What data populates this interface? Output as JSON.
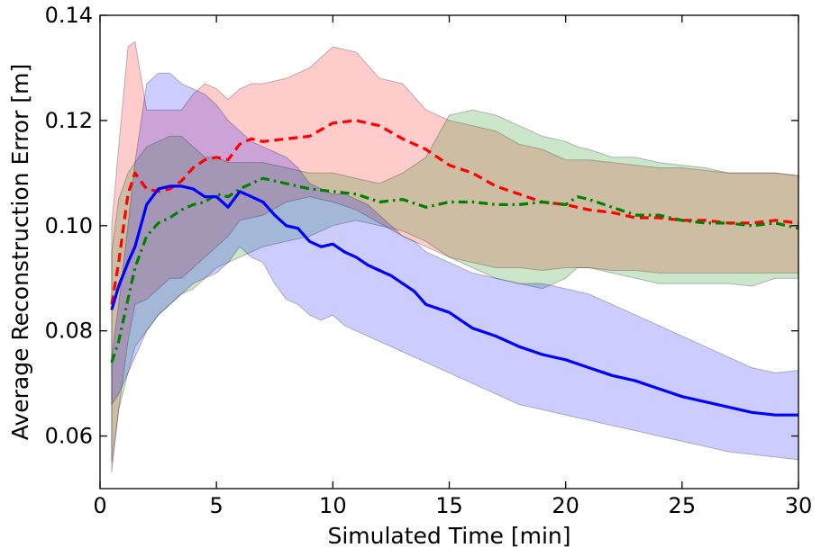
{
  "chart_data": {
    "type": "line",
    "title": "",
    "xlabel": "Simulated Time [min]",
    "ylabel": "Average Reconstruction Error [m]",
    "xlim": [
      0,
      30
    ],
    "ylim": [
      0.05,
      0.14
    ],
    "xticks": [
      0,
      5,
      10,
      15,
      20,
      25,
      30
    ],
    "xtick_labels": [
      "0",
      "5",
      "10",
      "15",
      "20",
      "25",
      "30"
    ],
    "yticks": [
      0.06,
      0.08,
      0.1,
      0.12,
      0.14
    ],
    "ytick_labels": [
      "0.06",
      "0.08",
      "0.10",
      "0.12",
      "0.14"
    ],
    "grid": false,
    "legend": "none",
    "series": [
      {
        "color": "#ff0000",
        "style": "dashed",
        "x": [
          0.5,
          0.8,
          1.2,
          1.5,
          2.0,
          2.5,
          3.0,
          3.5,
          4.0,
          4.5,
          5.0,
          5.5,
          6.0,
          6.5,
          7.0,
          8.0,
          9.0,
          10.0,
          11.0,
          12.0,
          13.0,
          14.0,
          15.0,
          16.0,
          17.0,
          18.0,
          19.0,
          20.0,
          21.0,
          22.0,
          23.0,
          24.0,
          25.0,
          26.0,
          27.0,
          28.0,
          29.0,
          30.0
        ],
        "values": [
          0.085,
          0.093,
          0.106,
          0.11,
          0.107,
          0.1065,
          0.107,
          0.1085,
          0.111,
          0.1125,
          0.113,
          0.1125,
          0.1155,
          0.1165,
          0.116,
          0.1165,
          0.117,
          0.1195,
          0.12,
          0.119,
          0.1165,
          0.1145,
          0.1115,
          0.11,
          0.1075,
          0.106,
          0.1045,
          0.104,
          0.103,
          0.1025,
          0.1015,
          0.1015,
          0.101,
          0.101,
          0.1005,
          0.1005,
          0.101,
          0.1005
        ],
        "band_upper": [
          0.1,
          0.115,
          0.134,
          0.135,
          0.122,
          0.122,
          0.122,
          0.122,
          0.125,
          0.127,
          0.126,
          0.124,
          0.126,
          0.127,
          0.127,
          0.128,
          0.13,
          0.134,
          0.133,
          0.128,
          0.127,
          0.122,
          0.12,
          0.119,
          0.118,
          0.1155,
          0.1145,
          0.1125,
          0.1125,
          0.112,
          0.1115,
          0.111,
          0.111,
          0.1105,
          0.11,
          0.11,
          0.11,
          0.1095
        ],
        "band_lower": [
          0.053,
          0.065,
          0.078,
          0.085,
          0.086,
          0.088,
          0.09,
          0.09,
          0.092,
          0.094,
          0.096,
          0.098,
          0.101,
          0.1015,
          0.102,
          0.1045,
          0.1055,
          0.1045,
          0.103,
          0.1005,
          0.098,
          0.096,
          0.094,
          0.093,
          0.092,
          0.092,
          0.0915,
          0.092,
          0.092,
          0.0915,
          0.0915,
          0.091,
          0.091,
          0.091,
          0.091,
          0.091,
          0.091,
          0.091
        ]
      },
      {
        "color": "#008000",
        "style": "dashdot",
        "x": [
          0.5,
          0.8,
          1.2,
          1.5,
          2.0,
          2.5,
          3.0,
          3.5,
          4.0,
          4.5,
          5.0,
          5.5,
          6.0,
          6.5,
          7.0,
          8.0,
          9.0,
          10.0,
          11.0,
          12.0,
          13.0,
          14.0,
          15.0,
          16.0,
          17.0,
          18.0,
          19.0,
          20.0,
          20.5,
          21.0,
          22.0,
          23.0,
          24.0,
          25.0,
          26.0,
          27.0,
          28.0,
          29.0,
          30.0
        ],
        "values": [
          0.074,
          0.078,
          0.086,
          0.092,
          0.098,
          0.1005,
          0.1015,
          0.103,
          0.104,
          0.1045,
          0.106,
          0.1055,
          0.107,
          0.108,
          0.109,
          0.108,
          0.107,
          0.1065,
          0.106,
          0.1045,
          0.105,
          0.1035,
          0.1045,
          0.1045,
          0.104,
          0.104,
          0.1045,
          0.104,
          0.1055,
          0.105,
          0.1035,
          0.102,
          0.102,
          0.101,
          0.1005,
          0.1005,
          0.1,
          0.1005,
          0.0995
        ],
        "band_upper": [
          0.095,
          0.105,
          0.11,
          0.112,
          0.115,
          0.116,
          0.117,
          0.117,
          0.115,
          0.113,
          0.113,
          0.112,
          0.112,
          0.112,
          0.112,
          0.111,
          0.11,
          0.11,
          0.109,
          0.108,
          0.11,
          0.113,
          0.121,
          0.122,
          0.121,
          0.119,
          0.117,
          0.116,
          0.115,
          0.1145,
          0.113,
          0.113,
          0.112,
          0.1115,
          0.111,
          0.11,
          0.11,
          0.11,
          0.1095
        ],
        "band_lower": [
          0.055,
          0.065,
          0.072,
          0.077,
          0.08,
          0.083,
          0.085,
          0.087,
          0.088,
          0.09,
          0.092,
          0.093,
          0.094,
          0.095,
          0.096,
          0.097,
          0.098,
          0.1,
          0.101,
          0.1,
          0.099,
          0.097,
          0.094,
          0.092,
          0.09,
          0.089,
          0.088,
          0.09,
          0.092,
          0.092,
          0.091,
          0.09,
          0.089,
          0.089,
          0.089,
          0.089,
          0.0885,
          0.09,
          0.09
        ]
      },
      {
        "color": "#0000ff",
        "style": "solid",
        "x": [
          0.5,
          0.8,
          1.2,
          1.5,
          2.0,
          2.5,
          3.0,
          3.5,
          4.0,
          4.5,
          5.0,
          5.5,
          6.0,
          6.5,
          7.0,
          7.5,
          8.0,
          8.5,
          9.0,
          9.5,
          10.0,
          10.5,
          11.0,
          11.5,
          12.0,
          12.5,
          13.0,
          13.5,
          14.0,
          15.0,
          16.0,
          17.0,
          18.0,
          19.0,
          20.0,
          21.0,
          22.0,
          23.0,
          24.0,
          25.0,
          26.0,
          27.0,
          28.0,
          29.0,
          30.0
        ],
        "values": [
          0.084,
          0.0885,
          0.093,
          0.096,
          0.104,
          0.107,
          0.1075,
          0.1075,
          0.107,
          0.1055,
          0.1055,
          0.1035,
          0.1065,
          0.1055,
          0.1045,
          0.102,
          0.1,
          0.0995,
          0.097,
          0.096,
          0.0965,
          0.095,
          0.094,
          0.0925,
          0.0915,
          0.0905,
          0.089,
          0.0875,
          0.085,
          0.0835,
          0.0805,
          0.079,
          0.077,
          0.0755,
          0.0745,
          0.073,
          0.0715,
          0.0705,
          0.069,
          0.0675,
          0.0665,
          0.0655,
          0.0645,
          0.064,
          0.064
        ],
        "band_upper": [
          0.075,
          0.085,
          0.1,
          0.112,
          0.127,
          0.129,
          0.129,
          0.127,
          0.126,
          0.125,
          0.123,
          0.12,
          0.118,
          0.116,
          0.115,
          0.114,
          0.113,
          0.111,
          0.108,
          0.107,
          0.106,
          0.106,
          0.105,
          0.104,
          0.102,
          0.1,
          0.098,
          0.097,
          0.095,
          0.093,
          0.091,
          0.09,
          0.089,
          0.089,
          0.088,
          0.087,
          0.085,
          0.083,
          0.081,
          0.079,
          0.077,
          0.075,
          0.073,
          0.072,
          0.0725
        ],
        "band_lower": [
          0.066,
          0.068,
          0.072,
          0.075,
          0.08,
          0.083,
          0.085,
          0.087,
          0.089,
          0.09,
          0.091,
          0.093,
          0.096,
          0.094,
          0.093,
          0.089,
          0.086,
          0.085,
          0.083,
          0.082,
          0.083,
          0.081,
          0.08,
          0.079,
          0.078,
          0.077,
          0.076,
          0.075,
          0.074,
          0.072,
          0.07,
          0.068,
          0.066,
          0.065,
          0.064,
          0.063,
          0.062,
          0.061,
          0.06,
          0.059,
          0.058,
          0.057,
          0.0565,
          0.056,
          0.0555
        ]
      }
    ]
  }
}
